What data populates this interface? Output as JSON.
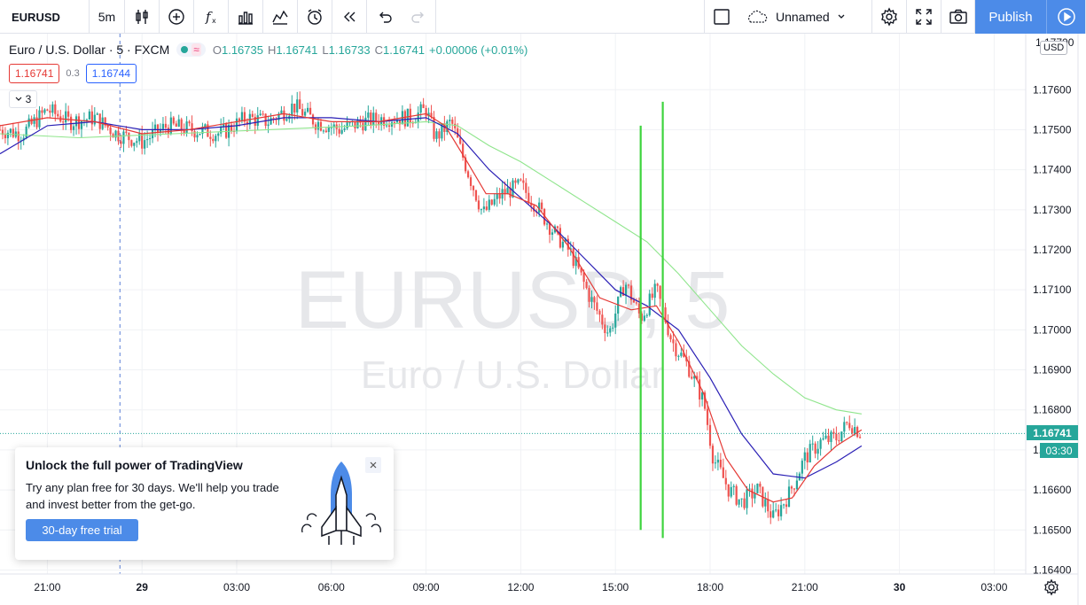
{
  "toolbar": {
    "symbol": "EURUSD",
    "interval": "5m",
    "layout_name": "Unnamed",
    "publish_label": "Publish",
    "icons": [
      "bar-style-icon",
      "add-compare-icon",
      "indicators-icon",
      "templates-icon",
      "financials-icon",
      "alert-icon",
      "replay-icon",
      "undo-icon",
      "redo-icon",
      "layout-square-icon",
      "cloud-icon",
      "settings-icon",
      "fullscreen-icon",
      "snapshot-icon",
      "play-icon"
    ]
  },
  "legend": {
    "title": "Euro / U.S. Dollar · 5 · FXCM",
    "ohlc": [
      {
        "k": "O",
        "v": "1.16735"
      },
      {
        "k": "H",
        "v": "1.16741"
      },
      {
        "k": "L",
        "v": "1.16733"
      },
      {
        "k": "C",
        "v": "1.16741"
      }
    ],
    "change": "+0.00006 (+0.01%)",
    "wave_symbol": "≈",
    "bid": "1.16741",
    "spread": "0.3",
    "ask": "1.16744",
    "indicators_count": "3"
  },
  "watermark": {
    "symbol": "EURUSD, 5",
    "description": "Euro / U.S. Dollar"
  },
  "price_axis": {
    "currency": "USD",
    "last_price": "1.16741",
    "countdown": "03:30",
    "last_value": 1.16741,
    "top_label": "1.17700"
  },
  "time_axis": {
    "labels": [
      {
        "t": "21:00",
        "h": 21
      },
      {
        "t": "29",
        "h": 24,
        "bold": true
      },
      {
        "t": "03:00",
        "h": 27
      },
      {
        "t": "06:00",
        "h": 30
      },
      {
        "t": "09:00",
        "h": 33
      },
      {
        "t": "12:00",
        "h": 36
      },
      {
        "t": "15:00",
        "h": 39
      },
      {
        "t": "18:00",
        "h": 42
      },
      {
        "t": "21:00",
        "h": 45
      },
      {
        "t": "30",
        "h": 48,
        "bold": true
      },
      {
        "t": "03:00",
        "h": 51
      }
    ]
  },
  "promo": {
    "title": "Unlock the full power of TradingView",
    "text": "Try any plan free for 30 days. We'll help you trade and invest better from the get-go.",
    "button": "30-day free trial"
  },
  "colors": {
    "up": "#26a69a",
    "down": "#ef5350",
    "ma_fast": "#e53935",
    "ma_mid": "#2a1fb5",
    "ma_slow": "#8fe58c",
    "drawn_lines": "#3ed43e",
    "accent": "#4c8be8"
  },
  "chart_data": {
    "type": "candlestick",
    "y_range": [
      1.1639,
      1.1774
    ],
    "y_ticks": [
      1.176,
      1.175,
      1.174,
      1.173,
      1.172,
      1.171,
      1.17,
      1.169,
      1.168,
      1.167,
      1.166,
      1.165,
      1.164
    ],
    "x_range_hours": [
      19.5,
      52.0
    ],
    "crosshair_hour": 23.3,
    "close_path": [
      [
        19.5,
        1.175
      ],
      [
        20.2,
        1.1749
      ],
      [
        21.0,
        1.1755
      ],
      [
        21.7,
        1.1752
      ],
      [
        22.5,
        1.1753
      ],
      [
        23.2,
        1.1749
      ],
      [
        24.0,
        1.1747
      ],
      [
        24.8,
        1.1751
      ],
      [
        25.6,
        1.175
      ],
      [
        26.5,
        1.1749
      ],
      [
        27.3,
        1.1753
      ],
      [
        28.0,
        1.1752
      ],
      [
        28.8,
        1.1756
      ],
      [
        29.5,
        1.1752
      ],
      [
        30.3,
        1.175
      ],
      [
        31.0,
        1.1752
      ],
      [
        31.8,
        1.1753
      ],
      [
        32.5,
        1.1753
      ],
      [
        33.0,
        1.1755
      ],
      [
        33.3,
        1.1748
      ],
      [
        33.8,
        1.1752
      ],
      [
        34.3,
        1.174
      ],
      [
        34.8,
        1.1729
      ],
      [
        35.4,
        1.1734
      ],
      [
        36.0,
        1.1736
      ],
      [
        36.5,
        1.1731
      ],
      [
        37.0,
        1.1725
      ],
      [
        37.6,
        1.1719
      ],
      [
        38.2,
        1.1708
      ],
      [
        38.8,
        1.1699
      ],
      [
        39.3,
        1.1712
      ],
      [
        39.8,
        1.1703
      ],
      [
        40.3,
        1.171
      ],
      [
        40.8,
        1.1697
      ],
      [
        41.3,
        1.1691
      ],
      [
        41.8,
        1.1682
      ],
      [
        42.1,
        1.1668
      ],
      [
        42.6,
        1.166
      ],
      [
        43.0,
        1.1657
      ],
      [
        43.5,
        1.166
      ],
      [
        44.0,
        1.1653
      ],
      [
        44.5,
        1.1659
      ],
      [
        45.0,
        1.1668
      ],
      [
        45.5,
        1.1672
      ],
      [
        46.0,
        1.1673
      ],
      [
        46.4,
        1.1677
      ],
      [
        46.8,
        1.1674
      ]
    ],
    "ma_fast": [
      [
        19.5,
        1.1751
      ],
      [
        21,
        1.1753
      ],
      [
        22.5,
        1.1752
      ],
      [
        24,
        1.1749
      ],
      [
        25.5,
        1.175
      ],
      [
        27,
        1.1752
      ],
      [
        28.5,
        1.1754
      ],
      [
        30,
        1.1752
      ],
      [
        31.5,
        1.1752
      ],
      [
        33,
        1.1754
      ],
      [
        33.6,
        1.1751
      ],
      [
        34.3,
        1.1742
      ],
      [
        34.9,
        1.1734
      ],
      [
        35.6,
        1.1734
      ],
      [
        36.5,
        1.1731
      ],
      [
        37.5,
        1.1721
      ],
      [
        38.5,
        1.1708
      ],
      [
        39.5,
        1.1705
      ],
      [
        40.3,
        1.1706
      ],
      [
        41,
        1.1697
      ],
      [
        41.8,
        1.1684
      ],
      [
        42.5,
        1.1668
      ],
      [
        43.2,
        1.166
      ],
      [
        44,
        1.1657
      ],
      [
        44.6,
        1.1658
      ],
      [
        45.3,
        1.1666
      ],
      [
        46,
        1.1671
      ],
      [
        46.8,
        1.1675
      ]
    ],
    "ma_mid": [
      [
        19.5,
        1.1744
      ],
      [
        21,
        1.1751
      ],
      [
        22.5,
        1.1752
      ],
      [
        24,
        1.175
      ],
      [
        25.5,
        1.175
      ],
      [
        27,
        1.1751
      ],
      [
        28.5,
        1.1753
      ],
      [
        30,
        1.1753
      ],
      [
        31.5,
        1.1752
      ],
      [
        33,
        1.1753
      ],
      [
        34,
        1.1749
      ],
      [
        35,
        1.174
      ],
      [
        36,
        1.1733
      ],
      [
        37,
        1.1726
      ],
      [
        38,
        1.1718
      ],
      [
        39,
        1.171
      ],
      [
        40,
        1.1706
      ],
      [
        41,
        1.17
      ],
      [
        42,
        1.1688
      ],
      [
        43,
        1.1674
      ],
      [
        44,
        1.1664
      ],
      [
        45,
        1.1663
      ],
      [
        46,
        1.1667
      ],
      [
        46.8,
        1.1671
      ]
    ],
    "ma_slow": [
      [
        19.5,
        1.1749
      ],
      [
        22,
        1.1748
      ],
      [
        25,
        1.1749
      ],
      [
        28,
        1.175
      ],
      [
        31,
        1.1751
      ],
      [
        33,
        1.1752
      ],
      [
        34,
        1.1751
      ],
      [
        35,
        1.1746
      ],
      [
        36,
        1.1742
      ],
      [
        37,
        1.1737
      ],
      [
        38,
        1.1732
      ],
      [
        39,
        1.1727
      ],
      [
        40,
        1.1722
      ],
      [
        41,
        1.1714
      ],
      [
        42,
        1.1705
      ],
      [
        43,
        1.1696
      ],
      [
        44,
        1.1689
      ],
      [
        45,
        1.1683
      ],
      [
        46,
        1.168
      ],
      [
        46.8,
        1.1679
      ]
    ],
    "drawn_lines": [
      {
        "h1": 39.8,
        "p1": 1.1751,
        "h2": 39.8,
        "p2": 1.165
      },
      {
        "h1": 40.5,
        "p1": 1.1757,
        "h2": 40.5,
        "p2": 1.1648
      }
    ]
  }
}
